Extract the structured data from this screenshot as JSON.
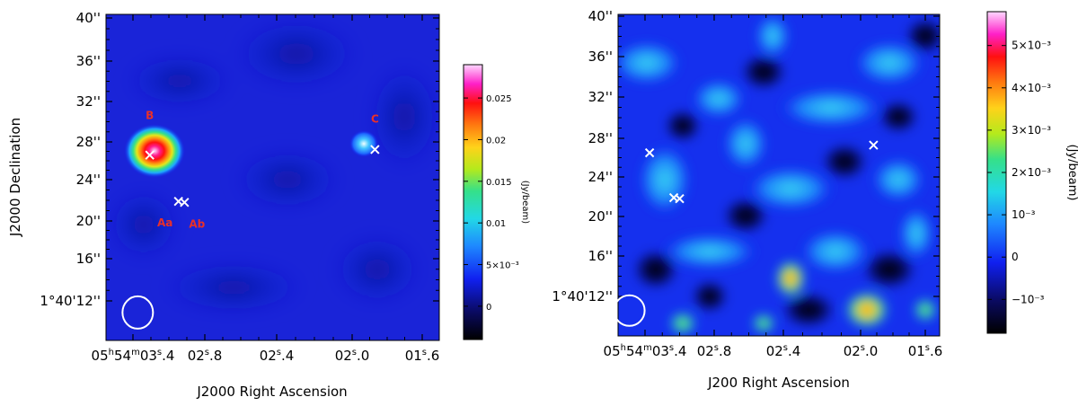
{
  "chart_data": [
    {
      "type": "heatmap",
      "xlabel": "J2000 Right Ascension",
      "ylabel": "J2000 Declination",
      "x_ticks": [
        "05h54m03s.4",
        "02s.8",
        "02s.4",
        "02s.0",
        "01s.6"
      ],
      "y_ticks": [
        "40''",
        "36''",
        "32''",
        "28''",
        "24''",
        "20''",
        "16''",
        "1°40'12''"
      ],
      "colorbar": {
        "title": "(Jy/beam)",
        "range": [
          -0.004,
          0.029
        ],
        "ticks": [
          {
            "value": 0,
            "label": "0"
          },
          {
            "value": 0.005,
            "label": "5×10⁻³"
          },
          {
            "value": 0.01,
            "label": "0.01"
          },
          {
            "value": 0.015,
            "label": "0.015"
          },
          {
            "value": 0.02,
            "label": "0.02"
          },
          {
            "value": 0.025,
            "label": "0.025"
          }
        ]
      },
      "sources": [
        {
          "name": "B",
          "ra_s": 3.26,
          "dec_as": 26.6,
          "label": "B"
        },
        {
          "name": "Aa",
          "ra_s": 3.02,
          "dec_as": 21.9,
          "label": "Aa"
        },
        {
          "name": "Ab",
          "ra_s": 2.97,
          "dec_as": 21.8,
          "label": "Ab"
        },
        {
          "name": "C",
          "ra_s": 1.87,
          "dec_as": 27.2,
          "label": "C"
        }
      ],
      "peaks": [
        {
          "ra_s": 3.26,
          "dec_as": 26.6,
          "flux": 0.028
        },
        {
          "ra_s": 1.87,
          "dec_as": 27.2,
          "flux": 0.006
        }
      ],
      "beam": {
        "ra_s": 3.36,
        "dec_as": 10.9
      }
    },
    {
      "type": "heatmap",
      "xlabel": "J200 Right Ascension",
      "ylabel": "",
      "x_ticks": [
        "05h54m03s.4",
        "02s.8",
        "02s.4",
        "02s.0",
        "01s.6"
      ],
      "y_ticks": [
        "40''",
        "36''",
        "32''",
        "28''",
        "24''",
        "20''",
        "16''",
        "1°40'12''"
      ],
      "colorbar": {
        "title": "(Jy/beam)",
        "range": [
          -0.0018,
          0.0058
        ],
        "ticks": [
          {
            "value": -0.001,
            "label": "−10⁻³"
          },
          {
            "value": 0,
            "label": "0"
          },
          {
            "value": 0.001,
            "label": "10⁻³"
          },
          {
            "value": 0.002,
            "label": "2×10⁻³"
          },
          {
            "value": 0.003,
            "label": "3×10⁻³"
          },
          {
            "value": 0.004,
            "label": "4×10⁻³"
          },
          {
            "value": 0.005,
            "label": "5×10⁻³"
          }
        ]
      },
      "sources": [
        {
          "name": "B",
          "ra_s": 3.36,
          "dec_as": 26.5,
          "label": ""
        },
        {
          "name": "Aa",
          "ra_s": 3.15,
          "dec_as": 21.9,
          "label": ""
        },
        {
          "name": "Ab",
          "ra_s": 3.1,
          "dec_as": 21.8,
          "label": ""
        },
        {
          "name": "C",
          "ra_s": 1.92,
          "dec_as": 27.3,
          "label": ""
        }
      ],
      "beam": {
        "ra_s": 3.43,
        "dec_as": 10.6
      }
    }
  ]
}
